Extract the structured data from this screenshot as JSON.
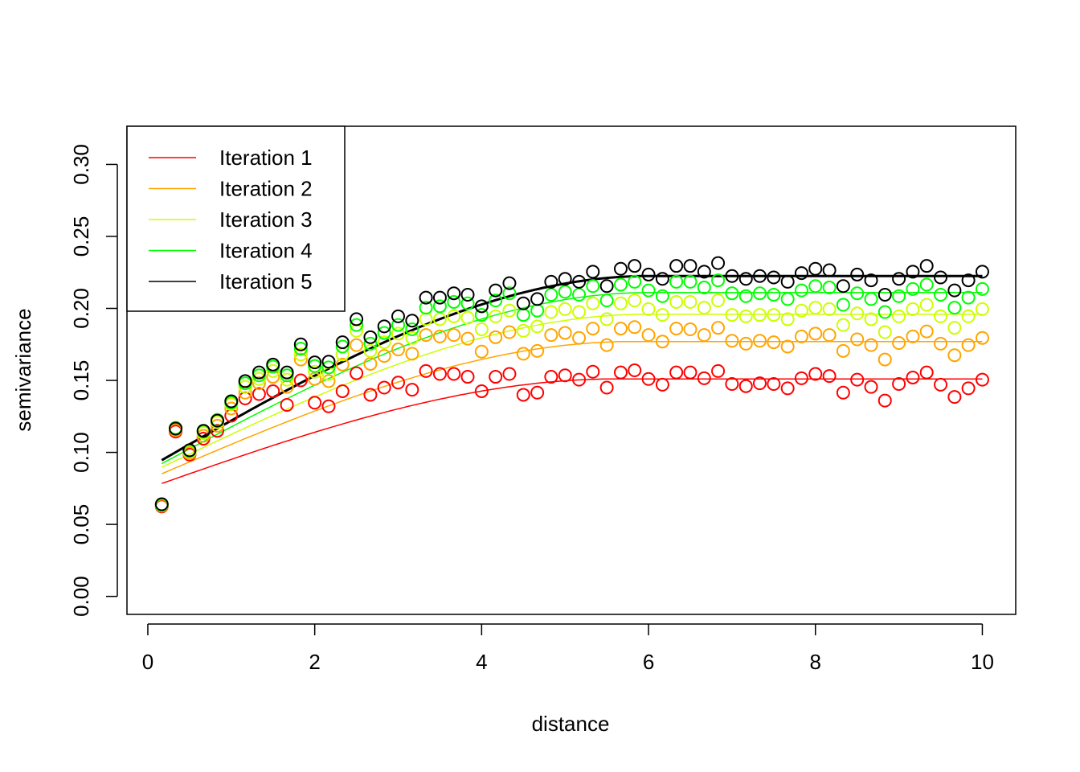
{
  "chart_data": {
    "type": "scatter",
    "title": "",
    "xlabel": "distance",
    "ylabel": "semivariance",
    "xlim": [
      -0.25,
      10.4
    ],
    "ylim": [
      -0.0125,
      0.3265
    ],
    "xticks": [
      0,
      2,
      4,
      6,
      8,
      10
    ],
    "xtick_labels": [
      "0",
      "2",
      "4",
      "6",
      "8",
      "10"
    ],
    "yticks": [
      0.0,
      0.05,
      0.1,
      0.15,
      0.2,
      0.25,
      0.3
    ],
    "ytick_labels": [
      "0.00",
      "0.05",
      "0.10",
      "0.15",
      "0.20",
      "0.25",
      "0.30"
    ],
    "legend": {
      "position": "top-left"
    },
    "x": [
      0.167,
      0.333,
      0.5,
      0.667,
      0.833,
      1.0,
      1.167,
      1.333,
      1.5,
      1.667,
      1.833,
      2.0,
      2.167,
      2.333,
      2.5,
      2.667,
      2.833,
      3.0,
      3.167,
      3.333,
      3.5,
      3.667,
      3.833,
      4.0,
      4.167,
      4.333,
      4.5,
      4.667,
      4.833,
      5.0,
      5.167,
      5.333,
      5.5,
      5.667,
      5.833,
      6.0,
      6.167,
      6.333,
      6.5,
      6.667,
      6.833,
      7.0,
      7.167,
      7.333,
      7.5,
      7.667,
      7.833,
      8.0,
      8.167,
      8.333,
      8.5,
      8.667,
      8.833,
      9.0,
      9.167,
      9.333,
      9.5,
      9.667,
      9.833,
      10.0
    ],
    "series": [
      {
        "name": "Iteration 1",
        "color": "#ff0000",
        "fit_width": 1.5,
        "values": [
          0.0625,
          0.1145,
          0.0985,
          0.1095,
          0.115,
          0.1255,
          0.1375,
          0.1405,
          0.1425,
          0.133,
          0.15,
          0.1345,
          0.132,
          0.1425,
          0.155,
          0.14,
          0.145,
          0.1485,
          0.1435,
          0.1565,
          0.1545,
          0.1545,
          0.1525,
          0.1425,
          0.1525,
          0.1545,
          0.14,
          0.1415,
          0.1525,
          0.1535,
          0.1505,
          0.156,
          0.145,
          0.1555,
          0.157,
          0.151,
          0.147,
          0.1555,
          0.1555,
          0.1515,
          0.1565,
          0.1475,
          0.146,
          0.148,
          0.1475,
          0.1445,
          0.1515,
          0.1545,
          0.153,
          0.1415,
          0.1505,
          0.1455,
          0.136,
          0.1475,
          0.152,
          0.1555,
          0.147,
          0.1385,
          0.1445,
          0.1505
        ],
        "fit": {
          "nugget": 0.075,
          "sill": 0.151,
          "range": 5.6
        }
      },
      {
        "name": "Iteration 2",
        "color": "#ffa500",
        "fit_width": 1.5,
        "values": [
          0.063,
          0.1155,
          0.0995,
          0.1115,
          0.1185,
          0.1305,
          0.1415,
          0.148,
          0.1525,
          0.1455,
          0.1645,
          0.151,
          0.1495,
          0.161,
          0.1745,
          0.1615,
          0.167,
          0.1715,
          0.1685,
          0.1815,
          0.1805,
          0.1815,
          0.179,
          0.17,
          0.18,
          0.1835,
          0.1685,
          0.1705,
          0.1815,
          0.183,
          0.1795,
          0.186,
          0.1745,
          0.186,
          0.187,
          0.1815,
          0.177,
          0.186,
          0.1855,
          0.1815,
          0.1865,
          0.1775,
          0.1755,
          0.1775,
          0.1765,
          0.1735,
          0.1805,
          0.1825,
          0.1815,
          0.1705,
          0.1785,
          0.1745,
          0.1645,
          0.176,
          0.1805,
          0.184,
          0.1755,
          0.1675,
          0.1745,
          0.1795
        ],
        "fit": {
          "nugget": 0.081,
          "sill": 0.177,
          "range": 5.8
        }
      },
      {
        "name": "Iteration 3",
        "color": "#ccff00",
        "fit_width": 1.5,
        "values": [
          0.0635,
          0.1165,
          0.1005,
          0.1135,
          0.121,
          0.1335,
          0.1455,
          0.151,
          0.1565,
          0.1505,
          0.168,
          0.156,
          0.1545,
          0.168,
          0.1845,
          0.1705,
          0.1765,
          0.1825,
          0.1795,
          0.1925,
          0.1925,
          0.1945,
          0.1935,
          0.1855,
          0.1945,
          0.1985,
          0.1845,
          0.1875,
          0.1975,
          0.1995,
          0.1975,
          0.2035,
          0.1925,
          0.2035,
          0.2055,
          0.1995,
          0.1955,
          0.2045,
          0.2045,
          0.2005,
          0.2055,
          0.1955,
          0.1945,
          0.1955,
          0.1955,
          0.1925,
          0.1985,
          0.2005,
          0.1995,
          0.1885,
          0.1965,
          0.1925,
          0.1835,
          0.1945,
          0.1995,
          0.2025,
          0.1945,
          0.1865,
          0.1945,
          0.1995
        ],
        "fit": {
          "nugget": 0.085,
          "sill": 0.196,
          "range": 6.0
        }
      },
      {
        "name": "Iteration 4",
        "color": "#00ff00",
        "fit_width": 1.5,
        "values": [
          0.0635,
          0.117,
          0.101,
          0.1145,
          0.1225,
          0.1345,
          0.148,
          0.1535,
          0.1595,
          0.1535,
          0.172,
          0.16,
          0.159,
          0.1735,
          0.1885,
          0.1755,
          0.183,
          0.1885,
          0.1855,
          0.2005,
          0.2015,
          0.2045,
          0.2035,
          0.1955,
          0.2055,
          0.2105,
          0.1955,
          0.1985,
          0.2095,
          0.2115,
          0.2095,
          0.2155,
          0.2055,
          0.2165,
          0.2185,
          0.2125,
          0.2085,
          0.2185,
          0.2185,
          0.2145,
          0.2195,
          0.2105,
          0.2085,
          0.2105,
          0.2095,
          0.2065,
          0.2125,
          0.2155,
          0.2145,
          0.2025,
          0.2105,
          0.2065,
          0.1975,
          0.2085,
          0.2135,
          0.2165,
          0.2095,
          0.2005,
          0.2075,
          0.2135
        ],
        "fit": {
          "nugget": 0.087,
          "sill": 0.211,
          "range": 6.0
        }
      },
      {
        "name": "Iteration 5",
        "color": "#000000",
        "fit_width": 3,
        "values": [
          0.064,
          0.1165,
          0.1015,
          0.115,
          0.122,
          0.1355,
          0.1495,
          0.1555,
          0.161,
          0.1555,
          0.175,
          0.1625,
          0.163,
          0.1765,
          0.1925,
          0.18,
          0.1875,
          0.1945,
          0.1915,
          0.2075,
          0.2075,
          0.2105,
          0.2095,
          0.2015,
          0.2125,
          0.2175,
          0.2035,
          0.2065,
          0.2185,
          0.2205,
          0.2185,
          0.2255,
          0.2155,
          0.2275,
          0.2295,
          0.2235,
          0.2205,
          0.2295,
          0.2295,
          0.2255,
          0.2315,
          0.2225,
          0.2205,
          0.2225,
          0.2215,
          0.2185,
          0.2245,
          0.2275,
          0.2265,
          0.2155,
          0.2235,
          0.2195,
          0.2095,
          0.2205,
          0.2255,
          0.2295,
          0.2215,
          0.2125,
          0.2195,
          0.2255
        ],
        "fit": {
          "nugget": 0.089,
          "sill": 0.2225,
          "range": 6.0
        }
      }
    ]
  }
}
